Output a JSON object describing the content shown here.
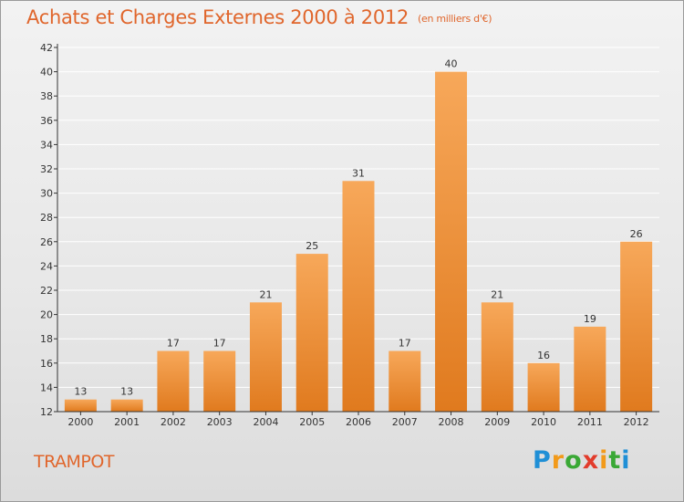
{
  "title": "Achats et Charges Externes 2000 à 2012",
  "subtitle": "(en milliers d'€)",
  "commune": "TRAMPOT",
  "logo": {
    "text": "Proxiti"
  },
  "colors": {
    "title": "#e0662c",
    "bar_top": "#f7a85a",
    "bar_bottom": "#e07a1e",
    "axis": "#333333",
    "grid": "#ffffff"
  },
  "chart_data": {
    "type": "bar",
    "title": "Achats et Charges Externes 2000 à 2012",
    "categories": [
      "2000",
      "2001",
      "2002",
      "2003",
      "2004",
      "2005",
      "2006",
      "2007",
      "2008",
      "2009",
      "2010",
      "2011",
      "2012"
    ],
    "values": [
      13,
      13,
      17,
      17,
      21,
      25,
      31,
      17,
      40,
      21,
      16,
      19,
      26
    ],
    "data_labels": [
      "13",
      "13",
      "17",
      "17",
      "21",
      "25",
      "31",
      "17",
      "40",
      "21",
      "16",
      "19",
      "26"
    ],
    "ylim": [
      12,
      42
    ],
    "yticks": [
      12,
      14,
      16,
      18,
      20,
      22,
      24,
      26,
      28,
      30,
      32,
      34,
      36,
      38,
      40,
      42
    ],
    "xlabel": "",
    "ylabel": "",
    "grid": true,
    "legend": "none"
  }
}
